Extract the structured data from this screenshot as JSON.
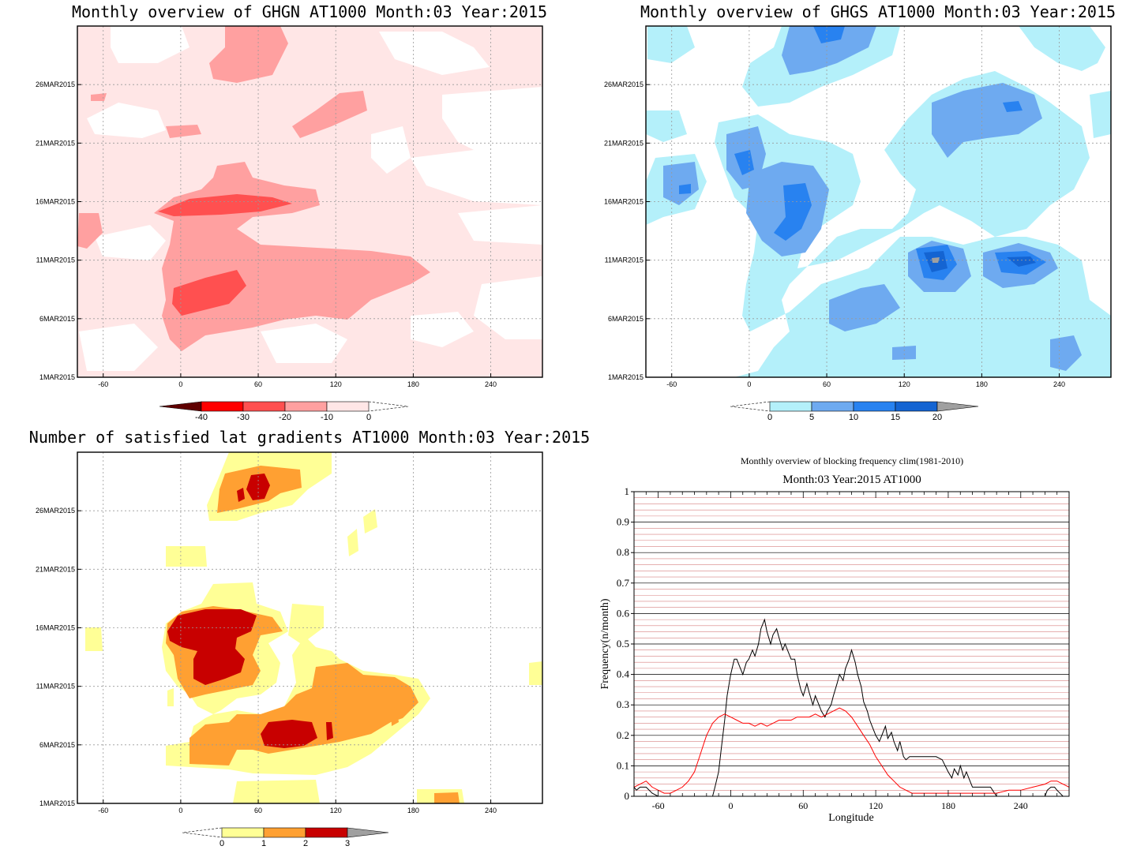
{
  "panels": [
    {
      "title": "Monthly overview of GHGN AT1000 Month:03 Year:2015",
      "xticks": [
        "-60",
        "0",
        "60",
        "120",
        "180",
        "240"
      ],
      "yticks": [
        "1MAR2015",
        "6MAR2015",
        "11MAR2015",
        "16MAR2015",
        "21MAR2015",
        "26MAR2015"
      ],
      "colorbar": [
        "-40",
        "-30",
        "-20",
        "-10",
        "0"
      ],
      "colors": [
        "#600000",
        "#ff0000",
        "#ff5050",
        "#ffa0a0",
        "#ffe6e6"
      ]
    },
    {
      "title": "Monthly overview of GHGS AT1000 Month:03 Year:2015",
      "xticks": [
        "-60",
        "0",
        "60",
        "120",
        "180",
        "240"
      ],
      "yticks": [
        "1MAR2015",
        "6MAR2015",
        "11MAR2015",
        "16MAR2015",
        "21MAR2015",
        "26MAR2015"
      ],
      "colorbar": [
        "0",
        "5",
        "10",
        "15",
        "20"
      ],
      "colors": [
        "#b4f0fa",
        "#6eaaf0",
        "#2882f0",
        "#1464d2",
        "#a0a0a0"
      ]
    },
    {
      "title": "Number of satisfied lat gradients AT1000 Month:03 Year:2015",
      "xticks": [
        "-60",
        "0",
        "60",
        "120",
        "180",
        "240"
      ],
      "yticks": [
        "1MAR2015",
        "6MAR2015",
        "11MAR2015",
        "16MAR2015",
        "21MAR2015",
        "26MAR2015"
      ],
      "colorbar": [
        "0",
        "1",
        "2",
        "3"
      ],
      "colors": [
        "#ffff96",
        "#ffa032",
        "#c80000",
        "#a0a0a0"
      ]
    }
  ],
  "chart_data": [
    {
      "type": "heatmap",
      "title": "Monthly overview of GHGN AT1000 Month:03 Year:2015",
      "x_range": [
        -80,
        280
      ],
      "y_range": [
        "1MAR2015",
        "31MAR2015"
      ],
      "levels": [
        -40,
        -30,
        -20,
        -10,
        0
      ]
    },
    {
      "type": "heatmap",
      "title": "Monthly overview of GHGS AT1000 Month:03 Year:2015",
      "x_range": [
        -80,
        280
      ],
      "y_range": [
        "1MAR2015",
        "31MAR2015"
      ],
      "levels": [
        0,
        5,
        10,
        15,
        20
      ]
    },
    {
      "type": "heatmap",
      "title": "Number of satisfied lat gradients AT1000 Month:03 Year:2015",
      "x_range": [
        -80,
        280
      ],
      "y_range": [
        "1MAR2015",
        "31MAR2015"
      ],
      "levels": [
        0,
        1,
        2,
        3
      ]
    },
    {
      "type": "line",
      "title": "Monthly overview of blocking frequency clim(1981-2010)",
      "subtitle": "Month:03 Year:2015  AT1000",
      "xlabel": "Longitude",
      "ylabel": "Frequency(n/month)",
      "xlim": [
        -80,
        280
      ],
      "ylim": [
        0,
        1
      ],
      "xticks": [
        -60,
        0,
        60,
        120,
        180,
        240
      ],
      "yticks": [
        "0",
        "0.1",
        "0.2",
        "0.3",
        "0.4",
        "0.5",
        "0.6",
        "0.7",
        "0.8",
        "0.9",
        "1"
      ],
      "grid": true,
      "series": [
        {
          "color": "#000000",
          "x": [
            -80,
            -78,
            -75,
            -70,
            -65,
            -60,
            -55,
            -50,
            -45,
            -40,
            -35,
            -30,
            -25,
            -20,
            -15,
            -13,
            -10,
            -8,
            -5,
            -3,
            0,
            3,
            5,
            8,
            10,
            13,
            15,
            18,
            20,
            23,
            25,
            28,
            30,
            33,
            35,
            38,
            40,
            43,
            45,
            48,
            50,
            53,
            55,
            58,
            60,
            63,
            65,
            68,
            70,
            73,
            75,
            78,
            80,
            83,
            85,
            88,
            90,
            93,
            95,
            98,
            100,
            103,
            105,
            108,
            110,
            113,
            115,
            118,
            120,
            123,
            125,
            128,
            130,
            133,
            135,
            138,
            140,
            143,
            145,
            148,
            150,
            155,
            160,
            165,
            170,
            175,
            180,
            183,
            185,
            188,
            190,
            193,
            195,
            198,
            200,
            205,
            210,
            215,
            220,
            230,
            240,
            250,
            260,
            262,
            265,
            268,
            270,
            275,
            280
          ],
          "y": [
            0.03,
            0.02,
            0.03,
            0.03,
            0.01,
            0.0,
            0.0,
            0.0,
            0.0,
            0.0,
            0.0,
            0.0,
            0.0,
            0.0,
            0.0,
            0.03,
            0.08,
            0.15,
            0.25,
            0.33,
            0.4,
            0.45,
            0.45,
            0.42,
            0.4,
            0.44,
            0.45,
            0.48,
            0.46,
            0.5,
            0.55,
            0.58,
            0.54,
            0.5,
            0.53,
            0.55,
            0.52,
            0.48,
            0.5,
            0.47,
            0.45,
            0.45,
            0.4,
            0.35,
            0.33,
            0.37,
            0.34,
            0.3,
            0.33,
            0.3,
            0.28,
            0.26,
            0.28,
            0.3,
            0.33,
            0.37,
            0.4,
            0.38,
            0.42,
            0.45,
            0.48,
            0.44,
            0.4,
            0.36,
            0.31,
            0.28,
            0.25,
            0.22,
            0.2,
            0.18,
            0.2,
            0.23,
            0.19,
            0.21,
            0.18,
            0.15,
            0.18,
            0.13,
            0.12,
            0.13,
            0.13,
            0.13,
            0.13,
            0.13,
            0.13,
            0.12,
            0.08,
            0.06,
            0.09,
            0.07,
            0.1,
            0.06,
            0.08,
            0.05,
            0.03,
            0.03,
            0.03,
            0.03,
            0.0,
            0.0,
            0.0,
            0.0,
            0.0,
            0.02,
            0.03,
            0.03,
            0.02,
            0.0,
            0.0
          ]
        },
        {
          "color": "#ff0000",
          "x": [
            -80,
            -75,
            -70,
            -65,
            -60,
            -55,
            -50,
            -45,
            -40,
            -35,
            -30,
            -25,
            -20,
            -15,
            -10,
            -5,
            0,
            5,
            10,
            15,
            20,
            25,
            30,
            35,
            40,
            45,
            50,
            55,
            60,
            65,
            70,
            75,
            80,
            85,
            90,
            95,
            100,
            105,
            110,
            115,
            120,
            125,
            130,
            135,
            140,
            145,
            150,
            160,
            170,
            180,
            190,
            200,
            210,
            220,
            230,
            240,
            250,
            260,
            265,
            270,
            275,
            280
          ],
          "y": [
            0.03,
            0.04,
            0.05,
            0.03,
            0.02,
            0.01,
            0.01,
            0.02,
            0.03,
            0.05,
            0.08,
            0.14,
            0.2,
            0.24,
            0.26,
            0.27,
            0.26,
            0.25,
            0.24,
            0.24,
            0.23,
            0.24,
            0.23,
            0.24,
            0.25,
            0.25,
            0.25,
            0.26,
            0.26,
            0.26,
            0.27,
            0.26,
            0.27,
            0.28,
            0.29,
            0.28,
            0.26,
            0.23,
            0.2,
            0.17,
            0.13,
            0.1,
            0.07,
            0.05,
            0.03,
            0.02,
            0.01,
            0.01,
            0.01,
            0.01,
            0.01,
            0.01,
            0.01,
            0.01,
            0.02,
            0.02,
            0.03,
            0.04,
            0.05,
            0.05,
            0.04,
            0.03
          ]
        }
      ]
    }
  ]
}
